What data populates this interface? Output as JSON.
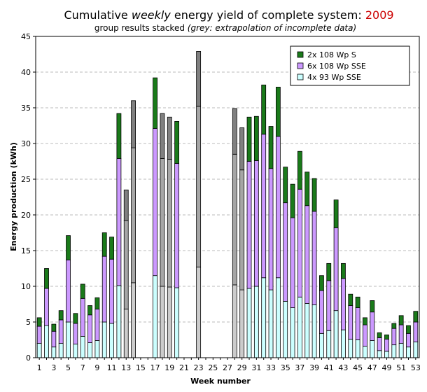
{
  "title": {
    "prefix": "Cumulative ",
    "emph": "weekly",
    "middle": " energy yield of complete system: ",
    "year": "2009",
    "year_color": "#cc0000"
  },
  "subtitle": {
    "plain": "group results stacked ",
    "emph": "(grey: extrapolation of incomplete data)"
  },
  "colors": {
    "s2x108": "#1a7a1a",
    "s6x108": "#cc99ff",
    "s4x93": "#ccffff",
    "extrap_top": "#808080",
    "extrap_mid": "#a6a6a6",
    "extrap_low": "#cccccc",
    "grid": "#bbbbbb"
  },
  "chart_data": {
    "type": "bar",
    "stacked": true,
    "xlabel": "Week number",
    "ylabel": "Energy production (kWh)",
    "ylim": [
      0,
      45
    ],
    "yticks": [
      0,
      5,
      10,
      15,
      20,
      25,
      30,
      35,
      40,
      45
    ],
    "xticks": [
      1,
      3,
      5,
      7,
      9,
      11,
      13,
      15,
      17,
      19,
      21,
      23,
      25,
      27,
      29,
      31,
      33,
      35,
      37,
      39,
      41,
      43,
      45,
      47,
      49,
      51,
      53
    ],
    "grid": "horizontal dashed",
    "legend_position": "top-right",
    "series": [
      {
        "key": "s4x93",
        "name": "4x 93 Wp SSE"
      },
      {
        "key": "s6x108",
        "name": "6x 108 Wp SSE"
      },
      {
        "key": "s2x108",
        "name": "2x 108 Wp S"
      }
    ],
    "legend_order": [
      "s2x108",
      "s6x108",
      "s4x93"
    ],
    "weeks": [
      {
        "w": 1,
        "values": [
          2.0,
          2.4,
          1.2
        ]
      },
      {
        "w": 2,
        "values": [
          4.5,
          5.2,
          2.8
        ]
      },
      {
        "w": 3,
        "values": [
          1.5,
          2.2,
          1.0
        ]
      },
      {
        "w": 4,
        "values": [
          2.0,
          3.3,
          1.3
        ]
      },
      {
        "w": 5,
        "values": [
          5.0,
          8.7,
          3.4
        ]
      },
      {
        "w": 6,
        "values": [
          1.9,
          2.9,
          1.4
        ]
      },
      {
        "w": 7,
        "values": [
          3.0,
          5.3,
          2.0
        ]
      },
      {
        "w": 8,
        "values": [
          2.1,
          3.9,
          1.3
        ]
      },
      {
        "w": 9,
        "values": [
          2.4,
          4.4,
          1.6
        ]
      },
      {
        "w": 10,
        "values": [
          5.0,
          9.2,
          3.3
        ]
      },
      {
        "w": 11,
        "values": [
          4.8,
          9.0,
          3.1
        ]
      },
      {
        "w": 12,
        "values": [
          10.1,
          17.8,
          6.3
        ]
      },
      {
        "w": 13,
        "values": [
          6.8,
          12.4,
          4.3
        ],
        "extrapolated": true
      },
      {
        "w": 14,
        "values": [
          10.5,
          18.9,
          6.6
        ],
        "extrapolated": true
      },
      {
        "w": 15,
        "values": [
          0,
          0,
          0
        ]
      },
      {
        "w": 16,
        "values": [
          0,
          0,
          0
        ]
      },
      {
        "w": 17,
        "values": [
          11.5,
          20.6,
          7.1
        ]
      },
      {
        "w": 18,
        "values": [
          10.0,
          17.9,
          6.3
        ],
        "extrapolated": true
      },
      {
        "w": 19,
        "values": [
          9.9,
          17.9,
          5.9
        ],
        "extrapolated": true
      },
      {
        "w": 20,
        "values": [
          9.8,
          17.4,
          5.9
        ]
      },
      {
        "w": 21,
        "values": [
          0,
          0,
          0
        ]
      },
      {
        "w": 22,
        "values": [
          0,
          0,
          0
        ]
      },
      {
        "w": 23,
        "values": [
          12.7,
          22.5,
          7.7
        ],
        "extrapolated": true
      },
      {
        "w": 24,
        "values": [
          0,
          0,
          0
        ]
      },
      {
        "w": 25,
        "values": [
          0,
          0,
          0
        ]
      },
      {
        "w": 26,
        "values": [
          0,
          0,
          0
        ]
      },
      {
        "w": 27,
        "values": [
          0,
          0,
          0
        ]
      },
      {
        "w": 28,
        "values": [
          10.2,
          18.3,
          6.4
        ],
        "extrapolated": true
      },
      {
        "w": 29,
        "values": [
          9.5,
          16.8,
          5.9
        ],
        "extrapolated": true
      },
      {
        "w": 30,
        "values": [
          9.7,
          17.8,
          6.2
        ]
      },
      {
        "w": 31,
        "values": [
          10.0,
          17.6,
          6.2
        ]
      },
      {
        "w": 32,
        "values": [
          11.2,
          20.1,
          6.9
        ]
      },
      {
        "w": 33,
        "values": [
          9.5,
          17.0,
          5.9
        ]
      },
      {
        "w": 34,
        "values": [
          11.2,
          19.8,
          6.9
        ]
      },
      {
        "w": 35,
        "values": [
          7.9,
          13.8,
          5.0
        ]
      },
      {
        "w": 36,
        "values": [
          7.0,
          12.6,
          4.7
        ]
      },
      {
        "w": 37,
        "values": [
          8.5,
          15.1,
          5.3
        ]
      },
      {
        "w": 38,
        "values": [
          7.6,
          13.7,
          4.7
        ]
      },
      {
        "w": 39,
        "values": [
          7.4,
          13.1,
          4.6
        ]
      },
      {
        "w": 40,
        "values": [
          3.4,
          6.0,
          2.1
        ]
      },
      {
        "w": 41,
        "values": [
          3.8,
          7.0,
          2.4
        ]
      },
      {
        "w": 42,
        "values": [
          6.6,
          11.6,
          3.9
        ]
      },
      {
        "w": 43,
        "values": [
          3.9,
          7.2,
          2.1
        ]
      },
      {
        "w": 44,
        "values": [
          2.6,
          4.7,
          1.6
        ]
      },
      {
        "w": 45,
        "values": [
          2.5,
          4.5,
          1.5
        ]
      },
      {
        "w": 46,
        "values": [
          1.6,
          3.0,
          1.0
        ]
      },
      {
        "w": 47,
        "values": [
          2.4,
          4.0,
          1.6
        ]
      },
      {
        "w": 48,
        "values": [
          1.0,
          1.8,
          0.7
        ]
      },
      {
        "w": 49,
        "values": [
          0.9,
          1.7,
          0.6
        ]
      },
      {
        "w": 50,
        "values": [
          1.8,
          2.3,
          0.7
        ]
      },
      {
        "w": 51,
        "values": [
          2.0,
          2.6,
          1.3
        ]
      },
      {
        "w": 52,
        "values": [
          1.5,
          1.9,
          1.1
        ]
      },
      {
        "w": 53,
        "values": [
          2.2,
          2.8,
          1.5
        ]
      }
    ]
  }
}
